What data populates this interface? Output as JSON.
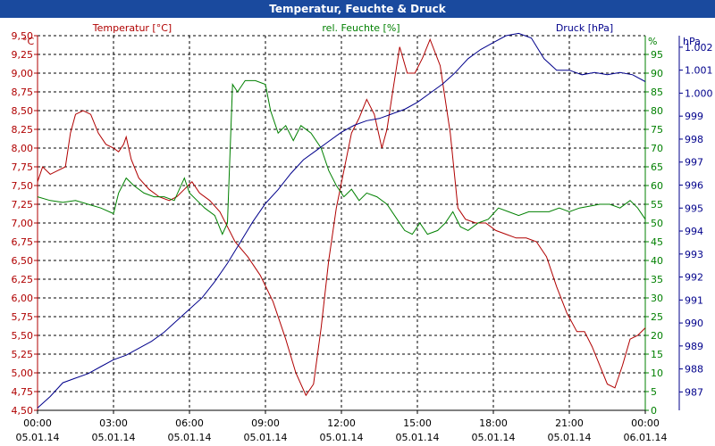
{
  "title": "Temperatur, Feuchte & Druck",
  "chart_data": {
    "type": "line",
    "title": "Temperatur, Feuchte & Druck",
    "colors": {
      "temperature": "#b00000",
      "humidity": "#008000",
      "pressure": "#00008b",
      "grid": "#000000",
      "titlebar": "#1a4a9e"
    },
    "x_axis": {
      "range_hours": [
        0,
        24
      ],
      "ticks": [
        {
          "time": "00:00",
          "date": "05.01.14",
          "h": 0
        },
        {
          "time": "03:00",
          "date": "05.01.14",
          "h": 3
        },
        {
          "time": "06:00",
          "date": "05.01.14",
          "h": 6
        },
        {
          "time": "09:00",
          "date": "05.01.14",
          "h": 9
        },
        {
          "time": "12:00",
          "date": "05.01.14",
          "h": 12
        },
        {
          "time": "15:00",
          "date": "05.01.14",
          "h": 15
        },
        {
          "time": "18:00",
          "date": "05.01.14",
          "h": 18
        },
        {
          "time": "21:00",
          "date": "05.01.14",
          "h": 21
        },
        {
          "time": "00:00",
          "date": "06.01.14",
          "h": 24
        }
      ]
    },
    "axes": {
      "temperature": {
        "unit": "°C",
        "label": "Temperatur [°C]",
        "ylim": [
          4.5,
          9.5
        ],
        "ticks": [
          "4,50",
          "4,75",
          "5,00",
          "5,25",
          "5,50",
          "5,75",
          "6,00",
          "6,25",
          "6,50",
          "6,75",
          "7,00",
          "7,25",
          "7,50",
          "7,75",
          "8,00",
          "8,25",
          "8,50",
          "8,75",
          "9,00",
          "9,25",
          "9,50"
        ]
      },
      "humidity": {
        "unit": "%",
        "label": "rel. Feuchte [%]",
        "ylim": [
          0,
          100
        ],
        "ticks": [
          "0",
          "5",
          "10",
          "15",
          "20",
          "25",
          "30",
          "35",
          "40",
          "45",
          "50",
          "55",
          "60",
          "65",
          "70",
          "75",
          "80",
          "85",
          "90",
          "95"
        ]
      },
      "pressure": {
        "unit": "hPa",
        "label": "Druck [hPa]",
        "ylim": [
          986.2,
          1002.5
        ],
        "ticks": [
          "987",
          "988",
          "989",
          "990",
          "991",
          "992",
          "993",
          "994",
          "995",
          "996",
          "997",
          "998",
          "999",
          "1.000",
          "1.001",
          "1.002"
        ]
      }
    },
    "series": [
      {
        "name": "Temperatur [°C]",
        "axis": "temperature",
        "color": "#b00000",
        "points": [
          [
            0,
            7.55
          ],
          [
            0.2,
            7.75
          ],
          [
            0.5,
            7.65
          ],
          [
            0.8,
            7.7
          ],
          [
            1.1,
            7.75
          ],
          [
            1.3,
            8.2
          ],
          [
            1.5,
            8.45
          ],
          [
            1.8,
            8.5
          ],
          [
            2.1,
            8.45
          ],
          [
            2.4,
            8.2
          ],
          [
            2.7,
            8.05
          ],
          [
            3.0,
            8.0
          ],
          [
            3.2,
            7.95
          ],
          [
            3.4,
            8.05
          ],
          [
            3.5,
            8.15
          ],
          [
            3.7,
            7.85
          ],
          [
            4.0,
            7.6
          ],
          [
            4.4,
            7.45
          ],
          [
            4.8,
            7.35
          ],
          [
            5.2,
            7.3
          ],
          [
            5.5,
            7.35
          ],
          [
            5.8,
            7.45
          ],
          [
            6.1,
            7.55
          ],
          [
            6.4,
            7.4
          ],
          [
            6.8,
            7.3
          ],
          [
            7.2,
            7.15
          ],
          [
            7.5,
            6.95
          ],
          [
            7.8,
            6.75
          ],
          [
            8.3,
            6.55
          ],
          [
            8.8,
            6.3
          ],
          [
            9.3,
            5.95
          ],
          [
            9.8,
            5.45
          ],
          [
            10.2,
            5.0
          ],
          [
            10.6,
            4.7
          ],
          [
            10.9,
            4.85
          ],
          [
            11.2,
            5.6
          ],
          [
            11.5,
            6.5
          ],
          [
            11.8,
            7.2
          ],
          [
            12.1,
            7.7
          ],
          [
            12.4,
            8.2
          ],
          [
            12.7,
            8.4
          ],
          [
            13.0,
            8.65
          ],
          [
            13.3,
            8.45
          ],
          [
            13.6,
            8.0
          ],
          [
            13.8,
            8.25
          ],
          [
            14.0,
            8.7
          ],
          [
            14.3,
            9.35
          ],
          [
            14.6,
            9.0
          ],
          [
            14.9,
            9.0
          ],
          [
            15.2,
            9.2
          ],
          [
            15.5,
            9.45
          ],
          [
            15.9,
            9.1
          ],
          [
            16.3,
            8.2
          ],
          [
            16.6,
            7.2
          ],
          [
            16.9,
            7.05
          ],
          [
            17.3,
            7.0
          ],
          [
            17.7,
            7.0
          ],
          [
            18.1,
            6.9
          ],
          [
            18.5,
            6.85
          ],
          [
            18.9,
            6.8
          ],
          [
            19.3,
            6.8
          ],
          [
            19.7,
            6.75
          ],
          [
            20.1,
            6.55
          ],
          [
            20.5,
            6.15
          ],
          [
            20.9,
            5.8
          ],
          [
            21.3,
            5.55
          ],
          [
            21.6,
            5.55
          ],
          [
            21.9,
            5.35
          ],
          [
            22.2,
            5.1
          ],
          [
            22.5,
            4.85
          ],
          [
            22.8,
            4.8
          ],
          [
            23.1,
            5.1
          ],
          [
            23.4,
            5.45
          ],
          [
            23.7,
            5.5
          ],
          [
            24,
            5.6
          ]
        ]
      },
      {
        "name": "rel. Feuchte [%]",
        "axis": "humidity",
        "color": "#008000",
        "points": [
          [
            0,
            57
          ],
          [
            0.5,
            56
          ],
          [
            1.0,
            55.5
          ],
          [
            1.5,
            56
          ],
          [
            2.0,
            55
          ],
          [
            2.5,
            54
          ],
          [
            3.0,
            52.5
          ],
          [
            3.2,
            58
          ],
          [
            3.5,
            62
          ],
          [
            3.8,
            60
          ],
          [
            4.2,
            58
          ],
          [
            4.6,
            57
          ],
          [
            5.0,
            57
          ],
          [
            5.4,
            56
          ],
          [
            5.8,
            62
          ],
          [
            6.0,
            58
          ],
          [
            6.3,
            56
          ],
          [
            6.6,
            54
          ],
          [
            7.0,
            52
          ],
          [
            7.3,
            47
          ],
          [
            7.5,
            50
          ],
          [
            7.7,
            87
          ],
          [
            7.9,
            85
          ],
          [
            8.2,
            88
          ],
          [
            8.6,
            88
          ],
          [
            9.0,
            87
          ],
          [
            9.2,
            80
          ],
          [
            9.5,
            74
          ],
          [
            9.8,
            76
          ],
          [
            10.1,
            72
          ],
          [
            10.4,
            76
          ],
          [
            10.8,
            74
          ],
          [
            11.2,
            70
          ],
          [
            11.5,
            64
          ],
          [
            11.8,
            60
          ],
          [
            12.1,
            57
          ],
          [
            12.4,
            59
          ],
          [
            12.7,
            56
          ],
          [
            13.0,
            58
          ],
          [
            13.4,
            57
          ],
          [
            13.8,
            55
          ],
          [
            14.2,
            51
          ],
          [
            14.5,
            48
          ],
          [
            14.8,
            47
          ],
          [
            15.1,
            50
          ],
          [
            15.4,
            47
          ],
          [
            15.8,
            48
          ],
          [
            16.1,
            50
          ],
          [
            16.4,
            53
          ],
          [
            16.7,
            49
          ],
          [
            17.0,
            48
          ],
          [
            17.4,
            50
          ],
          [
            17.8,
            51
          ],
          [
            18.2,
            54
          ],
          [
            18.6,
            53
          ],
          [
            19.0,
            52
          ],
          [
            19.4,
            53
          ],
          [
            19.8,
            53
          ],
          [
            20.2,
            53
          ],
          [
            20.6,
            54
          ],
          [
            21.0,
            53
          ],
          [
            21.4,
            54
          ],
          [
            21.8,
            54.5
          ],
          [
            22.2,
            55
          ],
          [
            22.6,
            55
          ],
          [
            23.0,
            54
          ],
          [
            23.4,
            56
          ],
          [
            23.7,
            54
          ],
          [
            24,
            51
          ]
        ]
      },
      {
        "name": "Druck [hPa]",
        "axis": "pressure",
        "color": "#00008b",
        "points": [
          [
            0,
            986.3
          ],
          [
            0.5,
            986.8
          ],
          [
            1.0,
            987.4
          ],
          [
            1.5,
            987.6
          ],
          [
            2.0,
            987.8
          ],
          [
            2.5,
            988.1
          ],
          [
            3.0,
            988.4
          ],
          [
            3.5,
            988.6
          ],
          [
            4.0,
            988.9
          ],
          [
            4.5,
            989.2
          ],
          [
            5.0,
            989.6
          ],
          [
            5.5,
            990.1
          ],
          [
            6.0,
            990.6
          ],
          [
            6.5,
            991.1
          ],
          [
            7.0,
            991.8
          ],
          [
            7.5,
            992.6
          ],
          [
            8.0,
            993.5
          ],
          [
            8.5,
            994.4
          ],
          [
            9.0,
            995.2
          ],
          [
            9.5,
            995.8
          ],
          [
            10.0,
            996.5
          ],
          [
            10.5,
            997.1
          ],
          [
            11.0,
            997.5
          ],
          [
            11.5,
            997.9
          ],
          [
            12.0,
            998.3
          ],
          [
            12.5,
            998.6
          ],
          [
            13.0,
            998.8
          ],
          [
            13.5,
            998.9
          ],
          [
            14.0,
            999.1
          ],
          [
            14.5,
            999.3
          ],
          [
            15.0,
            999.6
          ],
          [
            15.5,
            1000.0
          ],
          [
            16.0,
            1000.4
          ],
          [
            16.5,
            1000.9
          ],
          [
            17.0,
            1001.5
          ],
          [
            17.5,
            1001.9
          ],
          [
            18.0,
            1002.2
          ],
          [
            18.5,
            1002.5
          ],
          [
            19.0,
            1002.6
          ],
          [
            19.5,
            1002.4
          ],
          [
            20.0,
            1001.5
          ],
          [
            20.5,
            1001.0
          ],
          [
            21.0,
            1001.0
          ],
          [
            21.5,
            1000.8
          ],
          [
            22.0,
            1000.9
          ],
          [
            22.5,
            1000.8
          ],
          [
            23.0,
            1000.9
          ],
          [
            23.5,
            1000.8
          ],
          [
            24,
            1000.5
          ]
        ]
      }
    ]
  }
}
